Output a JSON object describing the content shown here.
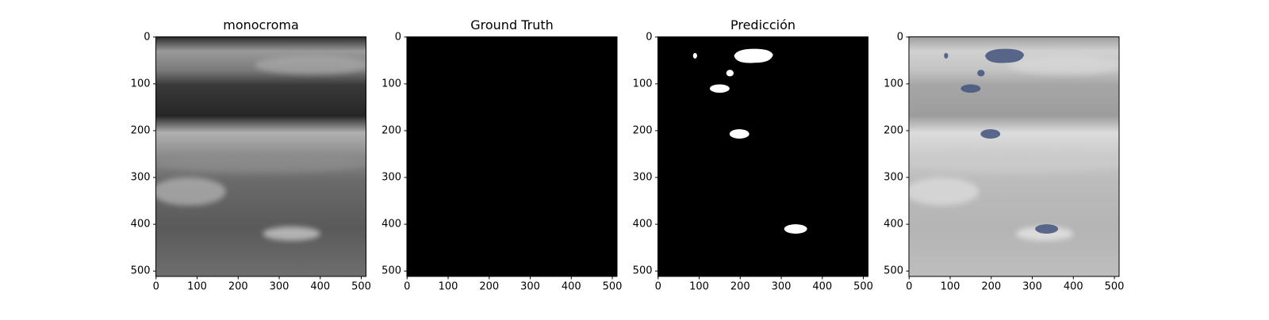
{
  "chart_data": [
    {
      "type": "image",
      "title": "monocroma",
      "xlim": [
        -0.5,
        511.5
      ],
      "ylim": [
        511.5,
        -0.5
      ],
      "xticks": [
        0,
        100,
        200,
        300,
        400,
        500
      ],
      "yticks": [
        0,
        100,
        200,
        300,
        400,
        500
      ]
    },
    {
      "type": "image",
      "title": "Ground Truth",
      "xlim": [
        -0.5,
        511.5
      ],
      "ylim": [
        511.5,
        -0.5
      ],
      "xticks": [
        0,
        100,
        200,
        300,
        400,
        500
      ],
      "yticks": [
        0,
        100,
        200,
        300,
        400,
        500
      ]
    },
    {
      "type": "image",
      "title": "Predicción",
      "xlim": [
        -0.5,
        511.5
      ],
      "ylim": [
        511.5,
        -0.5
      ],
      "xticks": [
        0,
        100,
        200,
        300,
        400,
        500
      ],
      "yticks": [
        0,
        100,
        200,
        300,
        400,
        500
      ]
    },
    {
      "type": "image",
      "xlim": [
        -0.5,
        511.5
      ],
      "ylim": [
        511.5,
        -0.5
      ],
      "xticks": [
        0,
        100,
        200,
        300,
        400,
        500
      ],
      "yticks": [
        0,
        100,
        200,
        300,
        400,
        500
      ]
    }
  ]
}
